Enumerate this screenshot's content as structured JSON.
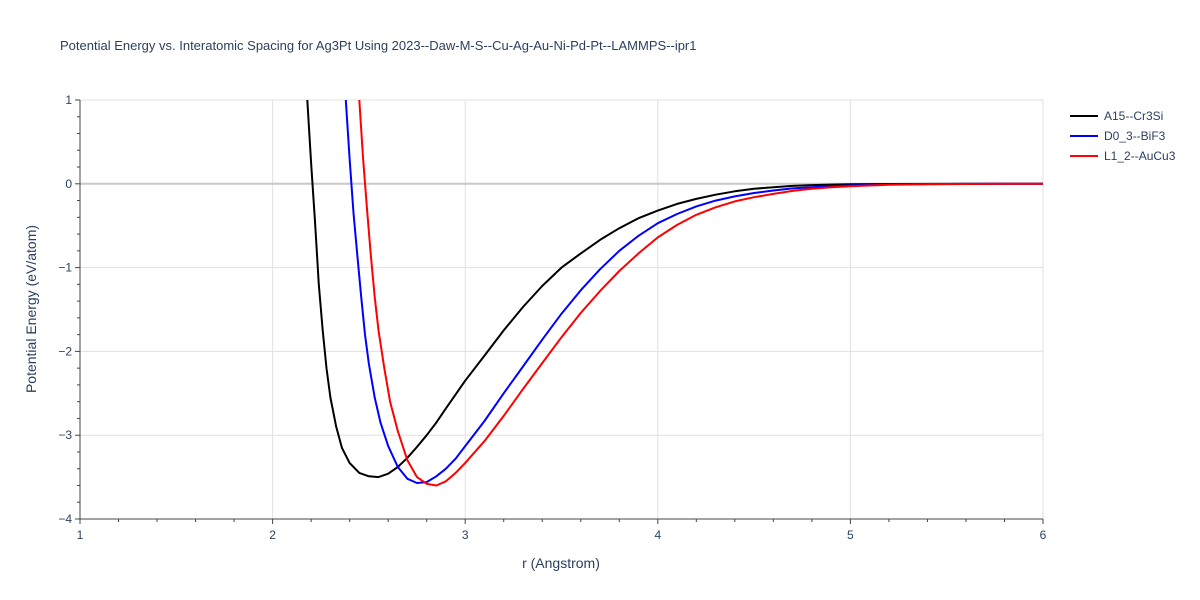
{
  "chart_data": {
    "type": "line",
    "title": "Potential Energy vs. Interatomic Spacing for Ag3Pt Using 2023--Daw-M-S--Cu-Ag-Au-Ni-Pd-Pt--LAMMPS--ipr1",
    "xlabel": "r (Angstrom)",
    "ylabel": "Potential Energy (eV/atom)",
    "xlim": [
      1,
      6
    ],
    "ylim": [
      -4,
      1
    ],
    "xticks": [
      1,
      2,
      3,
      4,
      5,
      6
    ],
    "xtick_labels": [
      "1",
      "2",
      "3",
      "4",
      "5",
      "6"
    ],
    "yticks": [
      -4,
      -3,
      -2,
      -1,
      0,
      1
    ],
    "ytick_labels": [
      "−4",
      "−3",
      "−2",
      "−1",
      "0",
      "1"
    ],
    "grid": true,
    "legend_position": "top-right",
    "series": [
      {
        "name": "A15--Cr3Si",
        "color": "#000000",
        "x": [
          2.18,
          2.2,
          2.22,
          2.24,
          2.26,
          2.28,
          2.3,
          2.33,
          2.36,
          2.4,
          2.45,
          2.5,
          2.55,
          2.6,
          2.65,
          2.7,
          2.75,
          2.8,
          2.85,
          2.9,
          3.0,
          3.1,
          3.2,
          3.3,
          3.4,
          3.5,
          3.6,
          3.7,
          3.8,
          3.9,
          4.0,
          4.1,
          4.2,
          4.3,
          4.4,
          4.5,
          4.6,
          4.7,
          4.8,
          4.9,
          5.0,
          5.2,
          5.4,
          5.6,
          5.8,
          6.0
        ],
        "y": [
          1.0,
          0.25,
          -0.45,
          -1.2,
          -1.75,
          -2.2,
          -2.55,
          -2.9,
          -3.15,
          -3.33,
          -3.45,
          -3.49,
          -3.5,
          -3.46,
          -3.38,
          -3.27,
          -3.14,
          -3.0,
          -2.85,
          -2.68,
          -2.35,
          -2.05,
          -1.75,
          -1.47,
          -1.22,
          -1.0,
          -0.83,
          -0.67,
          -0.53,
          -0.41,
          -0.32,
          -0.24,
          -0.18,
          -0.13,
          -0.09,
          -0.06,
          -0.04,
          -0.025,
          -0.015,
          -0.01,
          -0.006,
          -0.002,
          -0.001,
          0.0,
          0.0,
          0.0
        ]
      },
      {
        "name": "D0_3--BiF3",
        "color": "#0000ff",
        "x": [
          2.38,
          2.4,
          2.42,
          2.44,
          2.46,
          2.48,
          2.5,
          2.53,
          2.56,
          2.6,
          2.65,
          2.7,
          2.75,
          2.8,
          2.85,
          2.9,
          2.95,
          3.0,
          3.1,
          3.2,
          3.3,
          3.4,
          3.5,
          3.6,
          3.7,
          3.8,
          3.9,
          4.0,
          4.1,
          4.2,
          4.3,
          4.4,
          4.5,
          4.6,
          4.7,
          4.8,
          4.9,
          5.0,
          5.2,
          5.4,
          5.6,
          5.8,
          6.0
        ],
        "y": [
          1.0,
          0.3,
          -0.35,
          -0.85,
          -1.35,
          -1.8,
          -2.15,
          -2.55,
          -2.85,
          -3.13,
          -3.38,
          -3.52,
          -3.57,
          -3.56,
          -3.49,
          -3.4,
          -3.28,
          -3.13,
          -2.83,
          -2.5,
          -2.18,
          -1.86,
          -1.55,
          -1.27,
          -1.02,
          -0.8,
          -0.62,
          -0.47,
          -0.36,
          -0.27,
          -0.2,
          -0.15,
          -0.11,
          -0.08,
          -0.055,
          -0.04,
          -0.028,
          -0.02,
          -0.008,
          -0.003,
          -0.001,
          0.0,
          0.0
        ]
      },
      {
        "name": "L1_2--AuCu3",
        "color": "#ff0000",
        "x": [
          2.45,
          2.47,
          2.49,
          2.51,
          2.53,
          2.55,
          2.58,
          2.61,
          2.65,
          2.7,
          2.75,
          2.8,
          2.85,
          2.9,
          2.95,
          3.0,
          3.1,
          3.2,
          3.3,
          3.4,
          3.5,
          3.6,
          3.7,
          3.8,
          3.9,
          4.0,
          4.1,
          4.2,
          4.3,
          4.4,
          4.5,
          4.6,
          4.7,
          4.8,
          4.9,
          5.0,
          5.2,
          5.4,
          5.6,
          5.8,
          6.0
        ],
        "y": [
          1.0,
          0.3,
          -0.3,
          -0.85,
          -1.35,
          -1.75,
          -2.2,
          -2.6,
          -2.95,
          -3.3,
          -3.5,
          -3.58,
          -3.6,
          -3.55,
          -3.45,
          -3.33,
          -3.07,
          -2.77,
          -2.45,
          -2.14,
          -1.83,
          -1.54,
          -1.28,
          -1.04,
          -0.83,
          -0.64,
          -0.49,
          -0.37,
          -0.28,
          -0.21,
          -0.16,
          -0.12,
          -0.085,
          -0.06,
          -0.042,
          -0.03,
          -0.012,
          -0.005,
          -0.002,
          0.0,
          0.0
        ]
      }
    ]
  }
}
